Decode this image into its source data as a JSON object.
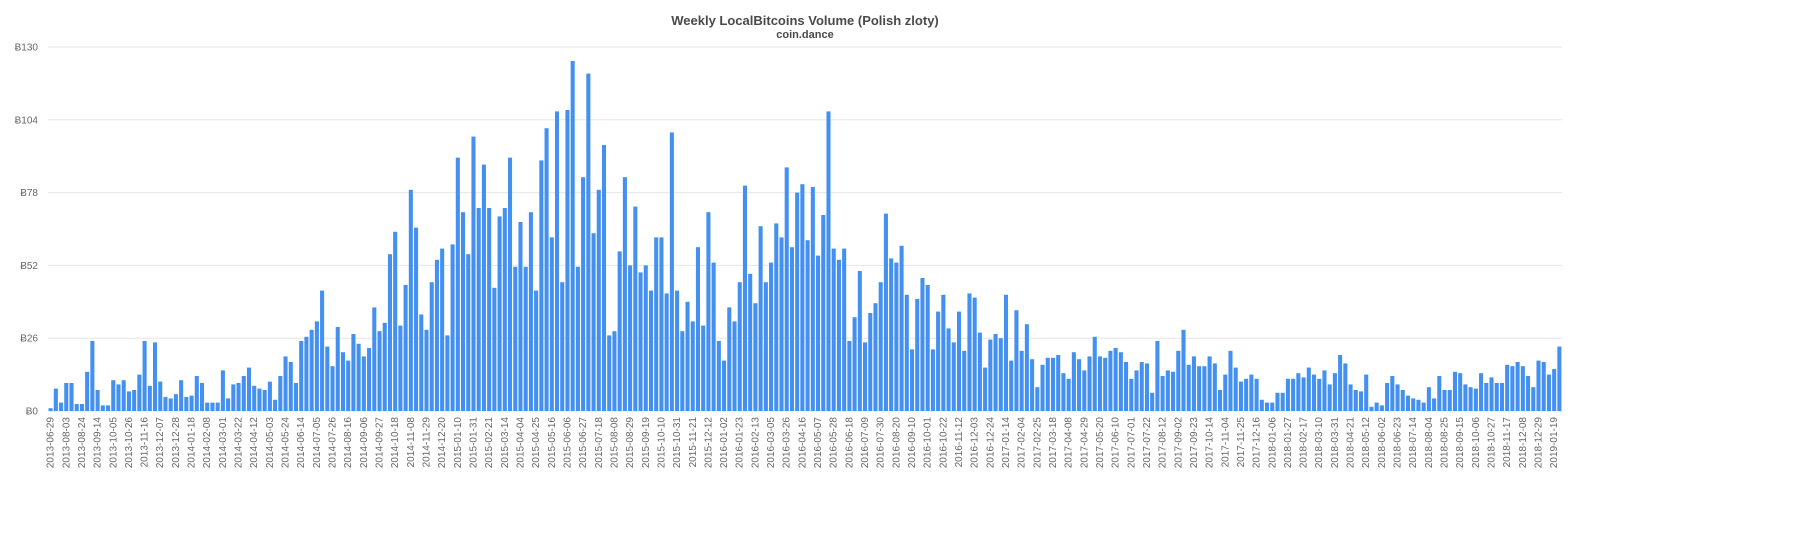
{
  "chart_data": {
    "type": "bar",
    "title": "Weekly LocalBitcoins Volume (Polish zloty)",
    "subtitle": "coin.dance",
    "xlabel": "",
    "ylabel": "",
    "ylim": [
      0,
      130
    ],
    "yticks": [
      0,
      26,
      52,
      78,
      104,
      130
    ],
    "ytick_prefix": "Ƀ",
    "grid": true,
    "bar_color": "#4390f0",
    "x_tick_labels": [
      "2013-06-29",
      "2013-08-03",
      "2013-08-24",
      "2013-09-14",
      "2013-10-05",
      "2013-10-26",
      "2013-11-16",
      "2013-12-07",
      "2013-12-28",
      "2014-01-18",
      "2014-02-08",
      "2014-03-01",
      "2014-03-22",
      "2014-04-12",
      "2014-05-03",
      "2014-05-24",
      "2014-06-14",
      "2014-07-05",
      "2014-07-26",
      "2014-08-16",
      "2014-09-06",
      "2014-09-27",
      "2014-10-18",
      "2014-11-08",
      "2014-11-29",
      "2014-12-20",
      "2015-01-10",
      "2015-01-31",
      "2015-02-21",
      "2015-03-14",
      "2015-04-04",
      "2015-04-25",
      "2015-05-16",
      "2015-06-06",
      "2015-06-27",
      "2015-07-18",
      "2015-08-08",
      "2015-08-29",
      "2015-09-19",
      "2015-10-10",
      "2015-10-31",
      "2015-11-21",
      "2015-12-12",
      "2016-01-02",
      "2016-01-23",
      "2016-02-13",
      "2016-03-05",
      "2016-03-26",
      "2016-04-16",
      "2016-05-07",
      "2016-05-28",
      "2016-06-18",
      "2016-07-09",
      "2016-07-30",
      "2016-08-20",
      "2016-09-10",
      "2016-10-01",
      "2016-10-22",
      "2016-11-12",
      "2016-12-03",
      "2016-12-24",
      "2017-01-14",
      "2017-02-04",
      "2017-02-25",
      "2017-03-18",
      "2017-04-08",
      "2017-04-29",
      "2017-05-20",
      "2017-06-10",
      "2017-07-01",
      "2017-07-22",
      "2017-08-12",
      "2017-09-02",
      "2017-09-23",
      "2017-10-14",
      "2017-11-04",
      "2017-11-25",
      "2017-12-16",
      "2018-01-06",
      "2018-01-27",
      "2018-02-17",
      "2018-03-10",
      "2018-03-31",
      "2018-04-21",
      "2018-05-12",
      "2018-06-02",
      "2018-06-23",
      "2018-07-14",
      "2018-08-04",
      "2018-08-25",
      "2018-09-15",
      "2018-10-06",
      "2018-10-27",
      "2018-11-17",
      "2018-12-08",
      "2018-12-29",
      "2019-01-19"
    ],
    "values": [
      1,
      8,
      3,
      10,
      10,
      2.5,
      2.5,
      14,
      25,
      7.5,
      2,
      2,
      11,
      9.5,
      11,
      7,
      7.5,
      13,
      25,
      9,
      24.5,
      10.5,
      5,
      4.5,
      6,
      11,
      5,
      5.5,
      12.5,
      10,
      3,
      3,
      3,
      14.5,
      4.5,
      9.5,
      10,
      12.5,
      15.5,
      9,
      8,
      7.5,
      10.5,
      4,
      12.5,
      19.5,
      17.5,
      10,
      25,
      26.5,
      29,
      32,
      43,
      23,
      16,
      30,
      21,
      18,
      27.5,
      24,
      19.5,
      22.5,
      37,
      28.5,
      31.5,
      56,
      64,
      30.5,
      45,
      79,
      65.5,
      34.5,
      29,
      46,
      54,
      58,
      27,
      59.5,
      90.5,
      71,
      56,
      98,
      72.5,
      88,
      72.5,
      44,
      69.5,
      72.5,
      90.5,
      51.5,
      67.5,
      51.5,
      71,
      43,
      89.5,
      101,
      62,
      107,
      46,
      107.5,
      125,
      51.5,
      83.5,
      120.5,
      63.5,
      79,
      95,
      27,
      28.5,
      57,
      83.5,
      52,
      73,
      49.5,
      52,
      43,
      62,
      62,
      42,
      99.5,
      43,
      28.5,
      39,
      32,
      58.5,
      30.5,
      71,
      53,
      25,
      18,
      37,
      32,
      46,
      80.5,
      49,
      38.5,
      66,
      46,
      53,
      67,
      62,
      87,
      58.5,
      78,
      81,
      61,
      80,
      55.5,
      70,
      107,
      58,
      54,
      58,
      25,
      33.5,
      50,
      24.5,
      35,
      38.5,
      46,
      70.5,
      54.5,
      53,
      59,
      41.5,
      22,
      40,
      47.5,
      45,
      22,
      35.5,
      41.5,
      29.5,
      24.5,
      35.5,
      21.5,
      42,
      40.5,
      28,
      15.5,
      25.5,
      27.5,
      26,
      41.5,
      18,
      36,
      21.5,
      31,
      18.5,
      8.5,
      16.5,
      19,
      19,
      20,
      13.5,
      11.5,
      21,
      18.5,
      14.5,
      19.5,
      26.5,
      19.5,
      19,
      21.5,
      22.5,
      21,
      17.5,
      11.5,
      14.5,
      17.5,
      17,
      6.5,
      25,
      12.5,
      14.5,
      14,
      21.5,
      29,
      16.5,
      19.5,
      16,
      16,
      19.5,
      17,
      7.5,
      13,
      21.5,
      15.5,
      10.5,
      11.5,
      13,
      11.5,
      4,
      3,
      3,
      6.5,
      6.5,
      11.5,
      11.5,
      13.5,
      12,
      15.5,
      13,
      11.5,
      14.5,
      9.5,
      13.5,
      20,
      17,
      9.5,
      7.5,
      7,
      13,
      1.5,
      3,
      2,
      10,
      12.5,
      9.5,
      7.5,
      5.5,
      4.5,
      4,
      3,
      8.5,
      4.5,
      12.5,
      7.5,
      7.5,
      14,
      13.5,
      9.5,
      8.5,
      8,
      13.5,
      10,
      12,
      10,
      10,
      16.5,
      16,
      17.5,
      16,
      12.5,
      8.5,
      18,
      17.5,
      13,
      15,
      23
    ]
  }
}
